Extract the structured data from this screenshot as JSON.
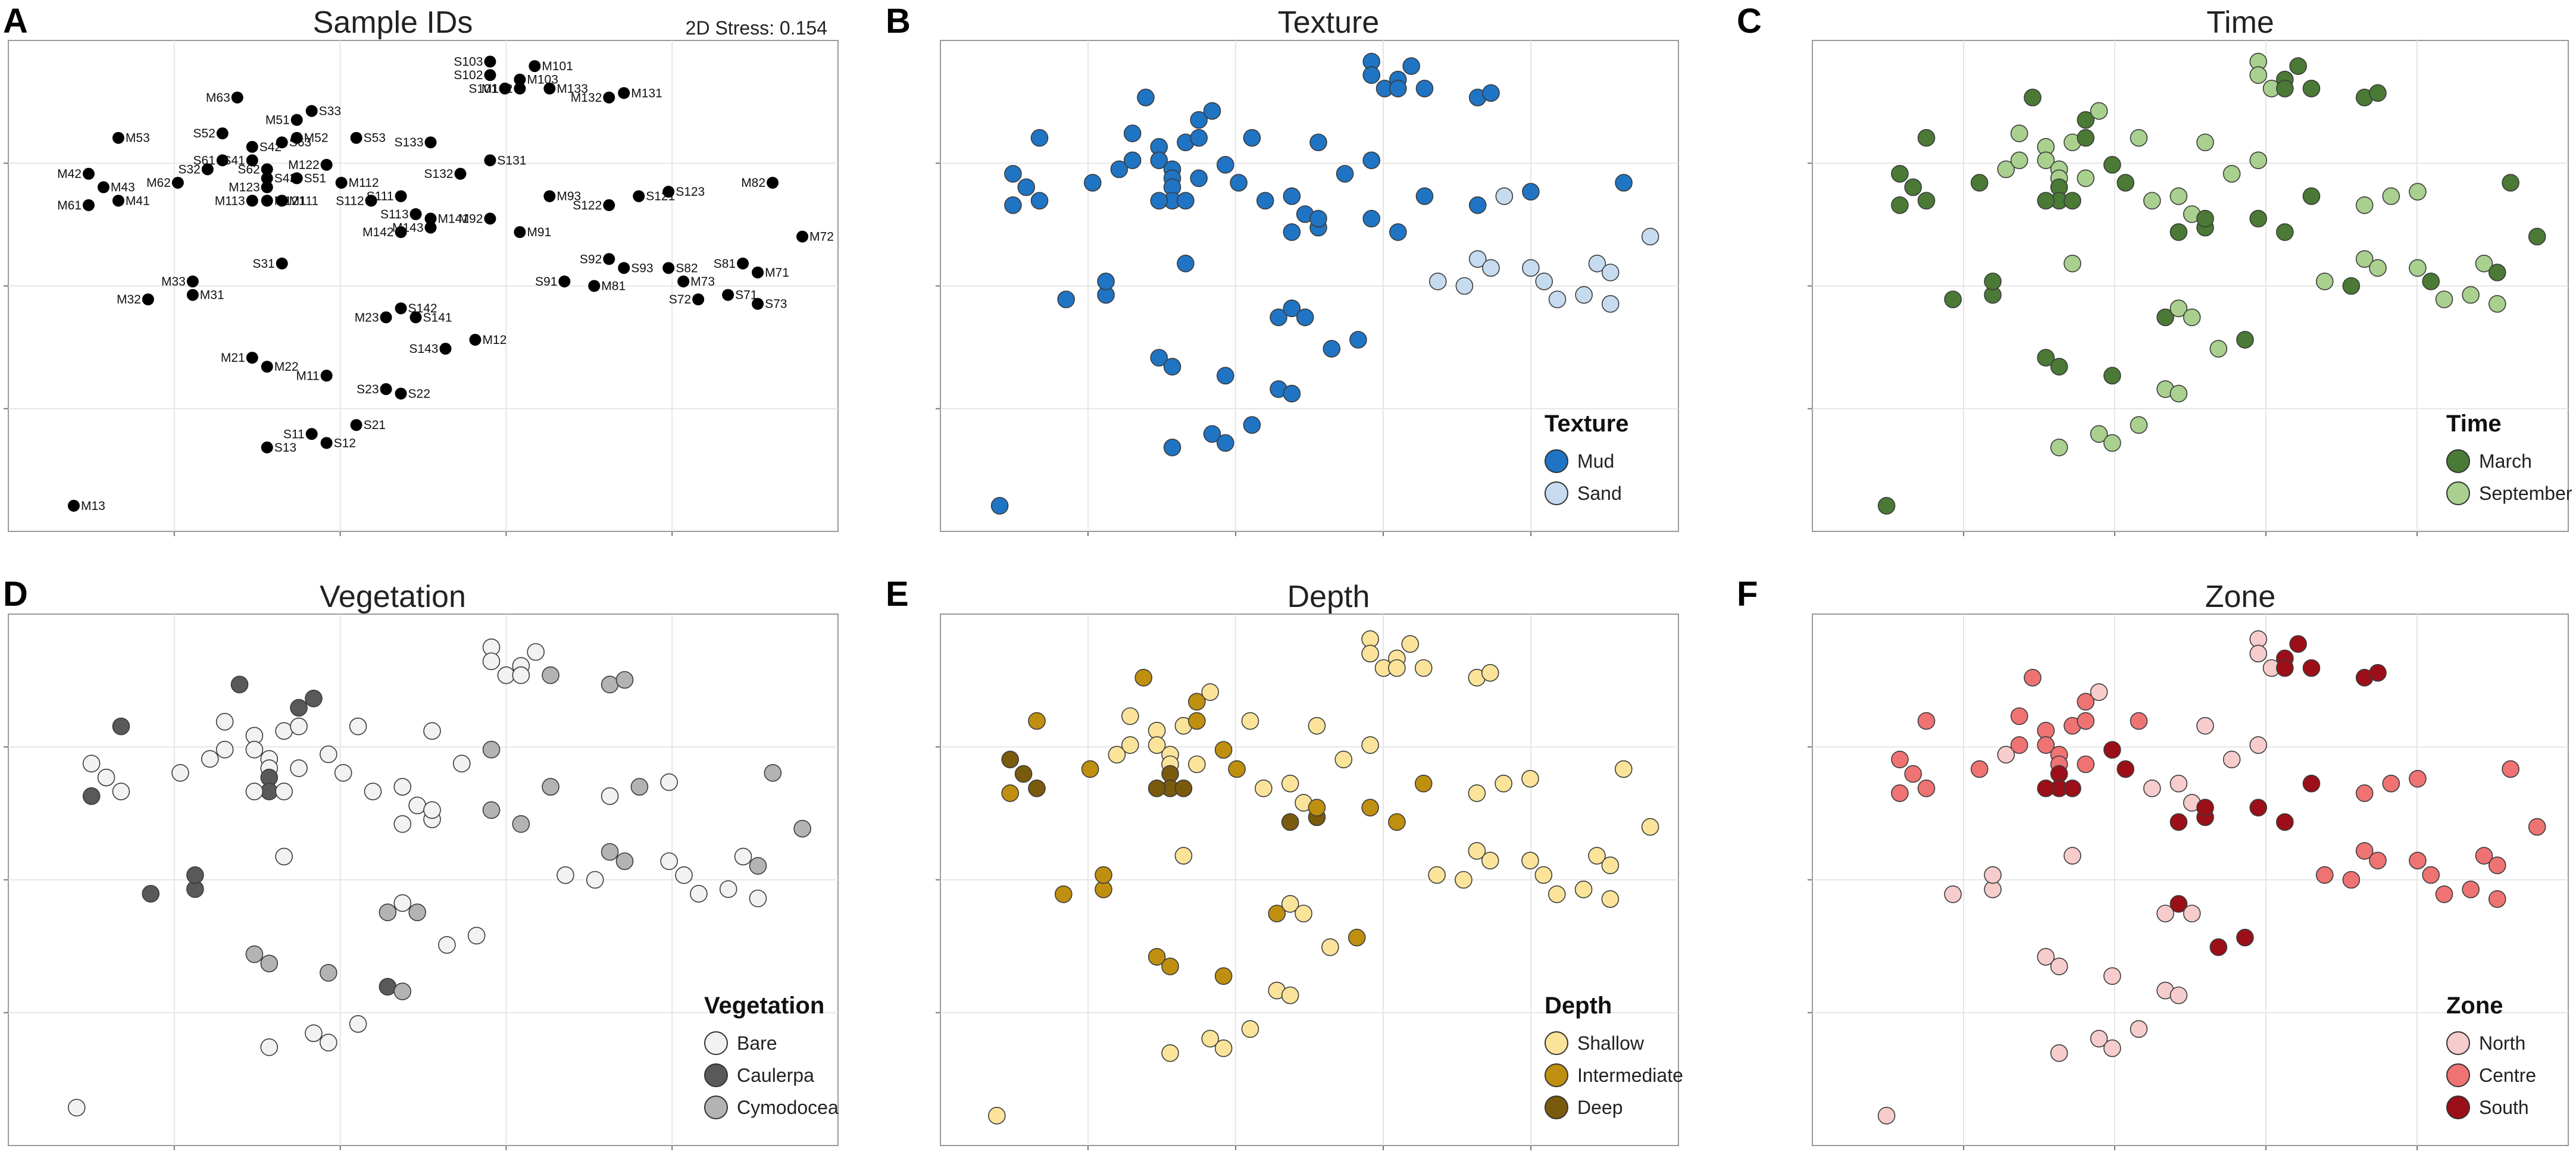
{
  "chart_data": [
    {
      "type": "scatter",
      "panel": "A",
      "title": "Sample IDs",
      "annotation": "2D Stress: 0.154",
      "xlim": [
        0,
        100
      ],
      "ylim": [
        0,
        100
      ],
      "grid": true,
      "point_color": "#000000",
      "points": [
        {
          "id": "M13",
          "x": 2,
          "y": 2,
          "lp": "r"
        },
        {
          "id": "S13",
          "x": 15,
          "y": 15,
          "lp": "r"
        },
        {
          "id": "S11",
          "x": 18,
          "y": 18,
          "lp": "l"
        },
        {
          "id": "S12",
          "x": 19,
          "y": 16,
          "lp": "r"
        },
        {
          "id": "S21",
          "x": 21,
          "y": 20,
          "lp": "r"
        },
        {
          "id": "M11",
          "x": 19,
          "y": 31,
          "lp": "l"
        },
        {
          "id": "S23",
          "x": 23,
          "y": 28,
          "lp": "l"
        },
        {
          "id": "S22",
          "x": 24,
          "y": 27,
          "lp": "r"
        },
        {
          "id": "M21",
          "x": 14,
          "y": 35,
          "lp": "l"
        },
        {
          "id": "M22",
          "x": 15,
          "y": 33,
          "lp": "r"
        },
        {
          "id": "M23",
          "x": 23,
          "y": 44,
          "lp": "l"
        },
        {
          "id": "S142",
          "x": 24,
          "y": 46,
          "lp": "r"
        },
        {
          "id": "S141",
          "x": 25,
          "y": 44,
          "lp": "r"
        },
        {
          "id": "S143",
          "x": 27,
          "y": 37,
          "lp": "l"
        },
        {
          "id": "M12",
          "x": 29,
          "y": 39,
          "lp": "r"
        },
        {
          "id": "S31",
          "x": 16,
          "y": 56,
          "lp": "l"
        },
        {
          "id": "M31",
          "x": 10,
          "y": 49,
          "lp": "r"
        },
        {
          "id": "M32",
          "x": 7,
          "y": 48,
          "lp": "l"
        },
        {
          "id": "M33",
          "x": 10,
          "y": 52,
          "lp": "l"
        },
        {
          "id": "M61",
          "x": 3,
          "y": 69,
          "lp": "l"
        },
        {
          "id": "M43",
          "x": 4,
          "y": 73,
          "lp": "r"
        },
        {
          "id": "M41",
          "x": 5,
          "y": 70,
          "lp": "r"
        },
        {
          "id": "M42",
          "x": 3,
          "y": 76,
          "lp": "l"
        },
        {
          "id": "M53",
          "x": 5,
          "y": 84,
          "lp": "r"
        },
        {
          "id": "M62",
          "x": 9,
          "y": 74,
          "lp": "l"
        },
        {
          "id": "S32",
          "x": 11,
          "y": 77,
          "lp": "l"
        },
        {
          "id": "S61",
          "x": 12,
          "y": 79,
          "lp": "l"
        },
        {
          "id": "S52",
          "x": 12,
          "y": 85,
          "lp": "l"
        },
        {
          "id": "M63",
          "x": 13,
          "y": 93,
          "lp": "l"
        },
        {
          "id": "S42",
          "x": 14,
          "y": 82,
          "lp": "r"
        },
        {
          "id": "S41",
          "x": 14,
          "y": 79,
          "lp": "l"
        },
        {
          "id": "S62",
          "x": 15,
          "y": 77,
          "lp": "l"
        },
        {
          "id": "S43",
          "x": 15,
          "y": 75,
          "lp": "r"
        },
        {
          "id": "M123",
          "x": 15,
          "y": 73,
          "lp": "l"
        },
        {
          "id": "M121",
          "x": 15,
          "y": 70,
          "lp": "r"
        },
        {
          "id": "M113",
          "x": 14,
          "y": 70,
          "lp": "l"
        },
        {
          "id": "M111",
          "x": 16,
          "y": 70,
          "lp": "r"
        },
        {
          "id": "M51",
          "x": 17,
          "y": 88,
          "lp": "l"
        },
        {
          "id": "S33",
          "x": 18,
          "y": 90,
          "lp": "r"
        },
        {
          "id": "S63",
          "x": 16,
          "y": 83,
          "lp": "r"
        },
        {
          "id": "M52",
          "x": 17,
          "y": 84,
          "lp": "r"
        },
        {
          "id": "S51",
          "x": 17,
          "y": 75,
          "lp": "r"
        },
        {
          "id": "M122",
          "x": 19,
          "y": 78,
          "lp": "l"
        },
        {
          "id": "M112",
          "x": 20,
          "y": 74,
          "lp": "r"
        },
        {
          "id": "S53",
          "x": 21,
          "y": 84,
          "lp": "r"
        },
        {
          "id": "S112",
          "x": 22,
          "y": 70,
          "lp": "l"
        },
        {
          "id": "S111",
          "x": 24,
          "y": 71,
          "lp": "l"
        },
        {
          "id": "S113",
          "x": 25,
          "y": 67,
          "lp": "l"
        },
        {
          "id": "M142",
          "x": 24,
          "y": 63,
          "lp": "l"
        },
        {
          "id": "M143",
          "x": 26,
          "y": 64,
          "lp": "l"
        },
        {
          "id": "M141",
          "x": 26,
          "y": 66,
          "lp": "r"
        },
        {
          "id": "S132",
          "x": 28,
          "y": 76,
          "lp": "l"
        },
        {
          "id": "S133",
          "x": 26,
          "y": 83,
          "lp": "l"
        },
        {
          "id": "S131",
          "x": 30,
          "y": 79,
          "lp": "r"
        },
        {
          "id": "M92",
          "x": 30,
          "y": 66,
          "lp": "l"
        },
        {
          "id": "M91",
          "x": 32,
          "y": 63,
          "lp": "r"
        },
        {
          "id": "M93",
          "x": 34,
          "y": 71,
          "lp": "r"
        },
        {
          "id": "S91",
          "x": 35,
          "y": 52,
          "lp": "l"
        },
        {
          "id": "M81",
          "x": 37,
          "y": 51,
          "lp": "r"
        },
        {
          "id": "S92",
          "x": 38,
          "y": 57,
          "lp": "l"
        },
        {
          "id": "S93",
          "x": 39,
          "y": 55,
          "lp": "r"
        },
        {
          "id": "S122",
          "x": 38,
          "y": 69,
          "lp": "l"
        },
        {
          "id": "S121",
          "x": 40,
          "y": 71,
          "lp": "r"
        },
        {
          "id": "S123",
          "x": 42,
          "y": 72,
          "lp": "r"
        },
        {
          "id": "S82",
          "x": 42,
          "y": 55,
          "lp": "r"
        },
        {
          "id": "M73",
          "x": 43,
          "y": 52,
          "lp": "r"
        },
        {
          "id": "S72",
          "x": 44,
          "y": 48,
          "lp": "l"
        },
        {
          "id": "S71",
          "x": 46,
          "y": 49,
          "lp": "r"
        },
        {
          "id": "S73",
          "x": 48,
          "y": 47,
          "lp": "r"
        },
        {
          "id": "S81",
          "x": 47,
          "y": 56,
          "lp": "l"
        },
        {
          "id": "M71",
          "x": 48,
          "y": 54,
          "lp": "r"
        },
        {
          "id": "M82",
          "x": 49,
          "y": 74,
          "lp": "l"
        },
        {
          "id": "M72",
          "x": 51,
          "y": 62,
          "lp": "r"
        },
        {
          "id": "S103",
          "x": 30,
          "y": 101,
          "lp": "l"
        },
        {
          "id": "S102",
          "x": 30,
          "y": 98,
          "lp": "l"
        },
        {
          "id": "S101",
          "x": 31,
          "y": 95,
          "lp": "l"
        },
        {
          "id": "M101",
          "x": 33,
          "y": 100,
          "lp": "r"
        },
        {
          "id": "M103",
          "x": 32,
          "y": 97,
          "lp": "r"
        },
        {
          "id": "M102",
          "x": 32,
          "y": 95,
          "lp": "l"
        },
        {
          "id": "M133",
          "x": 34,
          "y": 95,
          "lp": "r"
        },
        {
          "id": "M132",
          "x": 38,
          "y": 93,
          "lp": "l"
        },
        {
          "id": "M131",
          "x": 39,
          "y": 94,
          "lp": "r"
        }
      ]
    },
    {
      "type": "scatter",
      "panel": "B",
      "title": "Texture",
      "legend_title": "Texture",
      "legend": [
        {
          "label": "Mud",
          "color": "#1f74c4"
        },
        {
          "label": "Sand",
          "color": "#c6dbef"
        }
      ],
      "xlim": [
        0,
        100
      ],
      "ylim": [
        0,
        100
      ],
      "grid": true
    },
    {
      "type": "scatter",
      "panel": "C",
      "title": "Time",
      "legend_title": "Time",
      "legend": [
        {
          "label": "March",
          "color": "#4a7a35"
        },
        {
          "label": "September",
          "color": "#a9d08e"
        }
      ],
      "xlim": [
        0,
        100
      ],
      "ylim": [
        0,
        100
      ],
      "grid": true
    },
    {
      "type": "scatter",
      "panel": "D",
      "title": "Vegetation",
      "legend_title": "Vegetation",
      "legend": [
        {
          "label": "Bare",
          "color": "#f2f2f2"
        },
        {
          "label": "Caulerpa",
          "color": "#595959"
        },
        {
          "label": "Cymodocea",
          "color": "#b3b3b3"
        }
      ],
      "xlim": [
        0,
        100
      ],
      "ylim": [
        0,
        100
      ],
      "grid": true
    },
    {
      "type": "scatter",
      "panel": "E",
      "title": "Depth",
      "legend_title": "Depth",
      "legend": [
        {
          "label": "Shallow",
          "color": "#fbe49a"
        },
        {
          "label": "Intermediate",
          "color": "#bf8f0f"
        },
        {
          "label": "Deep",
          "color": "#7a5a0c"
        }
      ],
      "xlim": [
        0,
        100
      ],
      "ylim": [
        0,
        100
      ],
      "grid": true
    },
    {
      "type": "scatter",
      "panel": "F",
      "title": "Zone",
      "legend_title": "Zone",
      "legend": [
        {
          "label": "North",
          "color": "#f7cccc"
        },
        {
          "label": "Centre",
          "color": "#ef7373"
        },
        {
          "label": "South",
          "color": "#9c0f18"
        }
      ],
      "xlim": [
        0,
        100
      ],
      "ylim": [
        0,
        100
      ],
      "grid": true
    }
  ],
  "category_groups": {
    "texture": {
      "Sand": [
        "S91",
        "M81",
        "S92",
        "S93",
        "S82",
        "M73",
        "S72",
        "S71",
        "S73",
        "S81",
        "M71",
        "M72",
        "S121"
      ],
      "Mud": [
        "*"
      ]
    },
    "time": {
      "September": [
        "S13",
        "S11",
        "S12",
        "S21",
        "S23",
        "S22",
        "S142",
        "S141",
        "S143",
        "S31",
        "S32",
        "S61",
        "S52",
        "S42",
        "S41",
        "S62",
        "S43",
        "S51",
        "S33",
        "S63",
        "S53",
        "S112",
        "S111",
        "S113",
        "S132",
        "S133",
        "S131",
        "S91",
        "S92",
        "S93",
        "S122",
        "S121",
        "S123",
        "S82",
        "S72",
        "S71",
        "S73",
        "S81",
        "S103",
        "S102",
        "S101"
      ],
      "March": [
        "*"
      ]
    },
    "vegetation": {
      "Caulerpa": [
        "M31",
        "M32",
        "M33",
        "M61",
        "M53",
        "M51",
        "M63",
        "S33",
        "M123",
        "M121",
        "S23"
      ],
      "Cymodocea": [
        "M21",
        "M22",
        "M23",
        "M11",
        "S22",
        "S141",
        "S131",
        "M93",
        "M91",
        "M92",
        "S92",
        "S93",
        "M82",
        "M72",
        "M71",
        "S121",
        "M133",
        "M132",
        "M131"
      ],
      "Bare": [
        "*"
      ]
    },
    "depth": {
      "Deep": [
        "M43",
        "M41",
        "M42",
        "M113",
        "M111",
        "M123",
        "M121",
        "M142",
        "M143"
      ],
      "Intermediate": [
        "M61",
        "M62",
        "M63",
        "M53",
        "M51",
        "M52",
        "M112",
        "M122",
        "M11",
        "M21",
        "M22",
        "M23",
        "M31",
        "M32",
        "M33",
        "M12",
        "M141",
        "M92",
        "M91",
        "M93"
      ],
      "Shallow": [
        "*"
      ]
    },
    "zone": {
      "South": [
        "M101",
        "M102",
        "M103",
        "M131",
        "M132",
        "M133",
        "M111",
        "M112",
        "M113",
        "M121",
        "M122",
        "M123",
        "M141",
        "M142",
        "M143",
        "M92",
        "M91",
        "M93",
        "M12",
        "S142",
        "S143"
      ],
      "Centre": [
        "M41",
        "M42",
        "M43",
        "M61",
        "M62",
        "M63",
        "M51",
        "M52",
        "M53",
        "S63",
        "S61",
        "S62",
        "S41",
        "S43",
        "S42",
        "S51",
        "S52",
        "S53",
        "M72",
        "M71",
        "M73",
        "M81",
        "M82",
        "S72",
        "S71",
        "S73",
        "S81",
        "S82",
        "S91",
        "S92",
        "S93",
        "S122",
        "S121",
        "S123"
      ],
      "North": [
        "*"
      ]
    }
  }
}
